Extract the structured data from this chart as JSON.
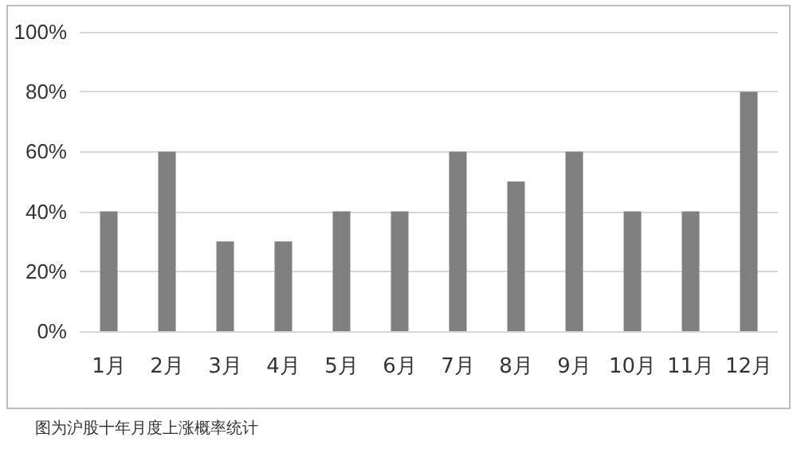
{
  "chart_data": {
    "type": "bar",
    "categories": [
      "1月",
      "2月",
      "3月",
      "4月",
      "5月",
      "6月",
      "7月",
      "8月",
      "9月",
      "10月",
      "11月",
      "12月"
    ],
    "values": [
      40,
      60,
      30,
      30,
      40,
      40,
      60,
      50,
      60,
      40,
      40,
      80
    ],
    "color": "#7f7f7f",
    "ylim": [
      0,
      100
    ],
    "yticks": [
      {
        "value": 0,
        "label": "0%"
      },
      {
        "value": 20,
        "label": "20%"
      },
      {
        "value": 40,
        "label": "40%"
      },
      {
        "value": 60,
        "label": "60%"
      },
      {
        "value": 80,
        "label": "80%"
      },
      {
        "value": 100,
        "label": "100%"
      }
    ],
    "grid": "y",
    "annotations": [
      "图为沪股十年月度上涨概率统计"
    ]
  }
}
